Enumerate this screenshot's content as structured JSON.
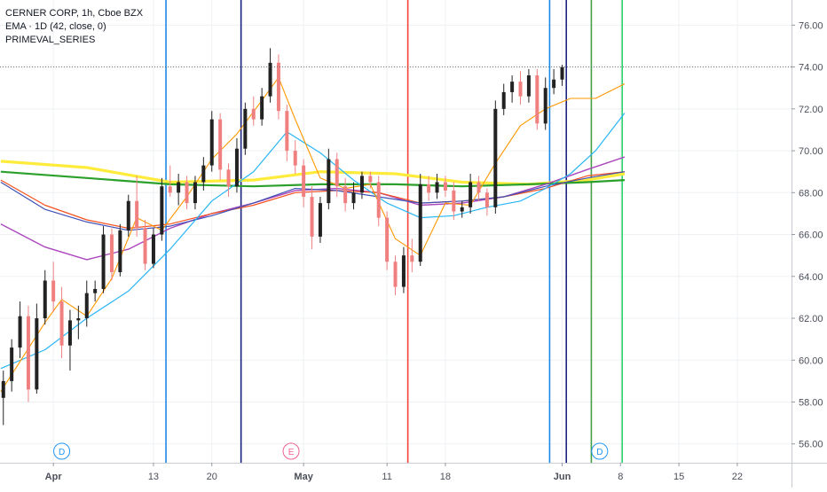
{
  "legend": {
    "title": "CERNER CORP, 1h, Cboe BZX",
    "indicator": "EMA · 1D (42, close, 0)",
    "series_label": "PRIMEVAL_SERIES"
  },
  "colors": {
    "background": "#ffffff",
    "grid": "#eef0f3",
    "axis_text": "#4a4e58",
    "candle_up": "#222222",
    "candle_down": "#f08080",
    "price_line": "#666666"
  },
  "chart_data": {
    "type": "line",
    "title": "CERNER CORP, 1h, Cboe BZX",
    "y_ticks": [
      56,
      58,
      60,
      62,
      64,
      66,
      68,
      70,
      72,
      74,
      76
    ],
    "y_tick_labels": [
      "56.00",
      "58.00",
      "60.00",
      "62.00",
      "64.00",
      "66.00",
      "68.00",
      "70.00",
      "72.00",
      "74.00",
      "76.00"
    ],
    "ylim": [
      55.1,
      77.2
    ],
    "x_tick_labels": [
      "Apr",
      "13",
      "20",
      "May",
      "11",
      "18",
      "Jun",
      "8",
      "15",
      "22"
    ],
    "x_tick_days": [
      1,
      13,
      20,
      31,
      41,
      48,
      62,
      69,
      76,
      83
    ],
    "x_axis_note": "days counted from Apr 1",
    "xlim": [
      -5.4,
      89.5
    ],
    "last_price_line": 74.0,
    "candles": [
      [
        -5,
        58.2,
        59.5,
        56.9,
        59.0
      ],
      [
        -4,
        59.0,
        61.0,
        58.5,
        60.6
      ],
      [
        -3,
        60.6,
        62.8,
        60.1,
        62.1
      ],
      [
        -2,
        62.1,
        62.6,
        58.0,
        58.6
      ],
      [
        -1,
        58.6,
        62.7,
        58.4,
        62.0
      ],
      [
        0,
        62.0,
        64.3,
        61.7,
        63.8
      ],
      [
        1,
        63.8,
        64.7,
        62.3,
        62.8
      ],
      [
        2,
        62.8,
        63.5,
        60.1,
        60.7
      ],
      [
        3,
        60.7,
        62.4,
        59.5,
        61.9
      ],
      [
        4,
        61.9,
        62.6,
        61.0,
        62.0
      ],
      [
        5,
        62.0,
        63.8,
        61.6,
        63.2
      ],
      [
        6,
        63.2,
        63.8,
        62.8,
        63.4
      ],
      [
        7,
        63.4,
        66.4,
        63.2,
        66.0
      ],
      [
        8,
        66.0,
        66.3,
        63.8,
        64.2
      ],
      [
        9,
        64.2,
        66.5,
        64.0,
        66.2
      ],
      [
        10,
        66.2,
        67.9,
        65.9,
        67.6
      ],
      [
        11,
        67.6,
        68.8,
        65.9,
        66.3
      ],
      [
        12,
        66.3,
        66.7,
        64.3,
        64.6
      ],
      [
        13,
        64.6,
        66.3,
        64.4,
        66.0
      ],
      [
        14,
        66.0,
        68.7,
        65.7,
        68.3
      ],
      [
        15,
        68.3,
        69.3,
        67.8,
        68.0
      ],
      [
        16,
        68.0,
        68.9,
        67.4,
        68.5
      ],
      [
        17,
        68.5,
        68.8,
        67.2,
        67.5
      ],
      [
        18,
        67.5,
        68.8,
        67.2,
        68.5
      ],
      [
        19,
        68.5,
        69.7,
        68.1,
        69.3
      ],
      [
        20,
        69.3,
        71.9,
        69.0,
        71.5
      ],
      [
        21,
        71.5,
        71.8,
        68.6,
        69.1
      ],
      [
        22,
        69.1,
        69.4,
        67.8,
        68.3
      ],
      [
        23,
        68.3,
        70.6,
        68.0,
        70.1
      ],
      [
        24,
        70.1,
        72.3,
        69.8,
        72.0
      ],
      [
        25,
        72.0,
        72.6,
        71.2,
        71.5
      ],
      [
        26,
        71.5,
        73.0,
        71.2,
        72.6
      ],
      [
        27,
        72.6,
        74.9,
        72.3,
        74.2
      ],
      [
        28,
        74.2,
        74.6,
        71.5,
        71.9
      ],
      [
        29,
        71.9,
        72.2,
        69.5,
        70.0
      ],
      [
        30,
        70.0,
        70.5,
        68.9,
        69.3
      ],
      [
        31,
        69.3,
        69.6,
        67.3,
        67.8
      ],
      [
        32,
        67.8,
        68.3,
        65.3,
        65.9
      ],
      [
        33,
        65.9,
        67.8,
        65.6,
        67.5
      ],
      [
        34,
        67.5,
        70.1,
        67.2,
        69.6
      ],
      [
        35,
        69.6,
        69.9,
        67.8,
        68.3
      ],
      [
        36,
        68.3,
        68.7,
        67.1,
        67.5
      ],
      [
        37,
        67.5,
        68.5,
        67.2,
        68.0
      ],
      [
        38,
        68.0,
        69.0,
        67.7,
        68.8
      ],
      [
        39,
        68.8,
        69.0,
        68.2,
        68.5
      ],
      [
        40,
        68.5,
        68.8,
        66.4,
        66.8
      ],
      [
        41,
        66.8,
        67.1,
        64.3,
        64.7
      ],
      [
        42,
        64.7,
        65.0,
        63.1,
        63.5
      ],
      [
        43,
        63.5,
        65.4,
        63.2,
        65.0
      ],
      [
        44,
        65.0,
        65.8,
        64.2,
        64.7
      ],
      [
        45,
        64.7,
        68.9,
        64.5,
        68.4
      ],
      [
        46,
        68.4,
        68.8,
        67.6,
        68.0
      ],
      [
        47,
        68.0,
        68.9,
        67.7,
        68.5
      ],
      [
        48,
        68.5,
        68.8,
        67.8,
        68.1
      ],
      [
        49,
        68.1,
        68.5,
        66.7,
        67.1
      ],
      [
        50,
        67.1,
        67.6,
        66.8,
        67.3
      ],
      [
        51,
        67.3,
        68.9,
        67.0,
        68.5
      ],
      [
        52,
        68.5,
        68.8,
        67.6,
        68.0
      ],
      [
        53,
        68.0,
        68.2,
        66.9,
        67.3
      ],
      [
        54,
        67.3,
        72.4,
        67.0,
        72.0
      ],
      [
        55,
        72.0,
        73.2,
        71.7,
        72.8
      ],
      [
        56,
        72.8,
        73.6,
        72.3,
        73.3
      ],
      [
        57,
        73.3,
        73.8,
        72.2,
        72.6
      ],
      [
        58,
        72.6,
        73.9,
        72.3,
        73.6
      ],
      [
        59,
        73.6,
        73.9,
        71.0,
        71.3
      ],
      [
        60,
        71.3,
        73.5,
        71.0,
        73.0
      ],
      [
        61,
        73.0,
        73.9,
        72.7,
        73.4
      ],
      [
        62,
        73.4,
        74.1,
        73.1,
        74.0
      ]
    ],
    "vertical_lines": [
      {
        "x": 14.5,
        "color": "#1e88e5"
      },
      {
        "x": 23.5,
        "color": "#1a237e"
      },
      {
        "x": 43.5,
        "color": "#f44336"
      },
      {
        "x": 60.5,
        "color": "#1e88e5"
      },
      {
        "x": 62.5,
        "color": "#1a237e"
      },
      {
        "x": 65.5,
        "color": "#43a047"
      },
      {
        "x": 69.2,
        "color": "#2bd26e"
      }
    ],
    "markers": [
      {
        "label": "D",
        "x": 2,
        "color": "#2196f3"
      },
      {
        "label": "E",
        "x": 29.5,
        "color": "#f06292"
      },
      {
        "label": "D",
        "x": 66.5,
        "color": "#2196f3"
      }
    ],
    "series": [
      {
        "color": "#ffeb3b",
        "width": 3.2,
        "points": [
          [
            -5.3,
            69.5
          ],
          [
            5,
            69.2
          ],
          [
            15,
            68.5
          ],
          [
            25,
            68.6
          ],
          [
            33,
            69.0
          ],
          [
            42,
            68.9
          ],
          [
            50,
            68.5
          ],
          [
            58,
            68.4
          ],
          [
            65,
            68.6
          ],
          [
            69.5,
            68.9
          ]
        ]
      },
      {
        "color": "#2ca02c",
        "width": 2.2,
        "points": [
          [
            -5.3,
            69.0
          ],
          [
            5,
            68.7
          ],
          [
            15,
            68.4
          ],
          [
            25,
            68.3
          ],
          [
            33,
            68.4
          ],
          [
            42,
            68.4
          ],
          [
            50,
            68.3
          ],
          [
            58,
            68.4
          ],
          [
            65,
            68.5
          ],
          [
            69.5,
            68.6
          ]
        ]
      },
      {
        "color": "#ab47bc",
        "width": 1.4,
        "points": [
          [
            -5.3,
            66.5
          ],
          [
            0,
            65.4
          ],
          [
            5,
            64.8
          ],
          [
            10,
            65.3
          ],
          [
            15,
            66.3
          ],
          [
            20,
            67.0
          ],
          [
            25,
            67.5
          ],
          [
            30,
            68.1
          ],
          [
            35,
            68.2
          ],
          [
            40,
            68.0
          ],
          [
            45,
            67.4
          ],
          [
            50,
            67.5
          ],
          [
            55,
            67.8
          ],
          [
            60,
            68.4
          ],
          [
            65,
            69.1
          ],
          [
            69.5,
            69.7
          ]
        ]
      },
      {
        "color": "#f4511e",
        "width": 1.2,
        "points": [
          [
            -5.3,
            68.6
          ],
          [
            0,
            67.4
          ],
          [
            5,
            66.7
          ],
          [
            10,
            66.3
          ],
          [
            15,
            66.5
          ],
          [
            20,
            67.0
          ],
          [
            25,
            67.4
          ],
          [
            30,
            68.0
          ],
          [
            35,
            68.1
          ],
          [
            40,
            68.0
          ],
          [
            45,
            67.5
          ],
          [
            50,
            67.6
          ],
          [
            55,
            67.8
          ],
          [
            60,
            68.2
          ],
          [
            65,
            68.8
          ],
          [
            69.5,
            69.0
          ]
        ]
      },
      {
        "color": "#3f51b5",
        "width": 1.2,
        "points": [
          [
            -5.3,
            68.5
          ],
          [
            0,
            67.2
          ],
          [
            5,
            66.6
          ],
          [
            10,
            66.2
          ],
          [
            15,
            66.4
          ],
          [
            20,
            66.9
          ],
          [
            25,
            67.5
          ],
          [
            30,
            68.2
          ],
          [
            35,
            68.1
          ],
          [
            40,
            67.8
          ],
          [
            45,
            67.5
          ],
          [
            50,
            67.6
          ],
          [
            55,
            67.8
          ],
          [
            60,
            68.3
          ],
          [
            65,
            68.7
          ],
          [
            69.5,
            69.0
          ]
        ]
      },
      {
        "color": "#29b6f6",
        "width": 1.2,
        "points": [
          [
            -5.3,
            59.6
          ],
          [
            0,
            60.5
          ],
          [
            5,
            62.0
          ],
          [
            10,
            63.3
          ],
          [
            15,
            65.3
          ],
          [
            20,
            67.6
          ],
          [
            25,
            69.0
          ],
          [
            29,
            70.9
          ],
          [
            33,
            69.9
          ],
          [
            37,
            68.6
          ],
          [
            41,
            67.5
          ],
          [
            45,
            66.8
          ],
          [
            49,
            66.9
          ],
          [
            53,
            67.3
          ],
          [
            57,
            67.6
          ],
          [
            60,
            68.2
          ],
          [
            63,
            68.9
          ],
          [
            66,
            70.0
          ],
          [
            69.5,
            71.8
          ]
        ]
      },
      {
        "color": "#ff9800",
        "width": 1.1,
        "points": [
          [
            -5.3,
            58.5
          ],
          [
            0,
            61.8
          ],
          [
            2,
            62.9
          ],
          [
            5,
            62.1
          ],
          [
            8,
            63.9
          ],
          [
            11,
            66.8
          ],
          [
            14,
            66.2
          ],
          [
            17,
            67.8
          ],
          [
            20,
            69.6
          ],
          [
            23,
            70.8
          ],
          [
            26,
            72.4
          ],
          [
            28,
            73.5
          ],
          [
            30,
            71.5
          ],
          [
            33,
            68.7
          ],
          [
            36,
            68.2
          ],
          [
            39,
            68.4
          ],
          [
            42,
            65.8
          ],
          [
            45,
            65.0
          ],
          [
            48,
            67.5
          ],
          [
            51,
            67.4
          ],
          [
            54,
            69.4
          ],
          [
            57,
            71.2
          ],
          [
            60,
            72.0
          ],
          [
            63,
            72.5
          ],
          [
            66,
            72.5
          ],
          [
            69.5,
            73.2
          ]
        ]
      }
    ]
  }
}
